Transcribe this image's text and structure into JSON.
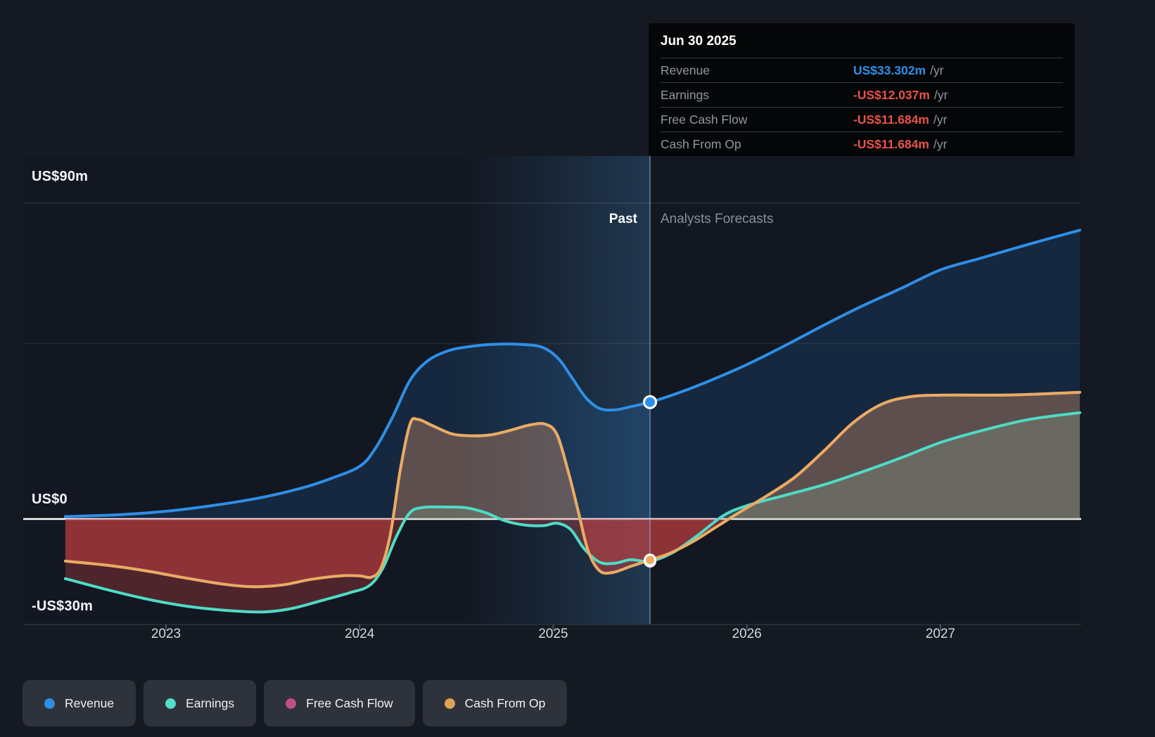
{
  "tooltip": {
    "date": "Jun 30 2025",
    "unit": "/yr",
    "rows": [
      {
        "label": "Revenue",
        "value": "US$33.302m",
        "color": "#2e8fe8"
      },
      {
        "label": "Earnings",
        "value": "-US$12.037m",
        "color": "#e85349"
      },
      {
        "label": "Free Cash Flow",
        "value": "-US$11.684m",
        "color": "#e85349"
      },
      {
        "label": "Cash From Op",
        "value": "-US$11.684m",
        "color": "#e85349"
      }
    ]
  },
  "legend": [
    {
      "label": "Revenue",
      "color": "#2d8ee3"
    },
    {
      "label": "Earnings",
      "color": "#52dec9"
    },
    {
      "label": "Free Cash Flow",
      "color": "#be4e87"
    },
    {
      "label": "Cash From Op",
      "color": "#dfa254"
    }
  ],
  "chart_data": {
    "type": "area",
    "title": "",
    "x_axis": {
      "labels": [
        "2023",
        "2024",
        "2025",
        "2026",
        "2027"
      ],
      "ticks": [
        2023,
        2024,
        2025,
        2026,
        2027
      ],
      "range": [
        2022.48,
        2027.72
      ]
    },
    "y_axis": {
      "unit": "US$ millions",
      "range": [
        -30,
        100
      ],
      "gridline_values": [
        90,
        50
      ],
      "labels": [
        {
          "text": "US$90m",
          "value": 90
        },
        {
          "text": "US$0",
          "value": 0
        },
        {
          "text": "-US$30m",
          "value": -30
        }
      ]
    },
    "divider": {
      "x": 2025.5,
      "past_label": "Past",
      "forecast_label": "Analysts Forecasts",
      "highlight_band": [
        2024.5,
        2025.5
      ]
    },
    "series": [
      {
        "name": "Revenue",
        "color": "#2e8fe8",
        "fill_positive": "rgba(46,143,232,0.15)",
        "fill_negative": "rgba(220,70,70,0.25)",
        "points": [
          [
            2022.48,
            0.7
          ],
          [
            2022.75,
            1.2
          ],
          [
            2023.0,
            2.2
          ],
          [
            2023.25,
            3.9
          ],
          [
            2023.5,
            6.2
          ],
          [
            2023.7,
            8.8
          ],
          [
            2023.85,
            11.5
          ],
          [
            2024.0,
            15
          ],
          [
            2024.08,
            20
          ],
          [
            2024.17,
            29
          ],
          [
            2024.26,
            39.5
          ],
          [
            2024.35,
            45
          ],
          [
            2024.45,
            47.8
          ],
          [
            2024.55,
            49
          ],
          [
            2024.7,
            49.8
          ],
          [
            2024.85,
            49.7
          ],
          [
            2024.95,
            48.8
          ],
          [
            2025.03,
            45.5
          ],
          [
            2025.1,
            40
          ],
          [
            2025.17,
            34.5
          ],
          [
            2025.24,
            31.5
          ],
          [
            2025.32,
            31.1
          ],
          [
            2025.4,
            32
          ],
          [
            2025.5,
            33.302
          ],
          [
            2025.65,
            36
          ],
          [
            2025.8,
            39.2
          ],
          [
            2026.0,
            44
          ],
          [
            2026.2,
            49.5
          ],
          [
            2026.4,
            55.3
          ],
          [
            2026.6,
            60.8
          ],
          [
            2026.8,
            65.8
          ],
          [
            2027.0,
            71
          ],
          [
            2027.2,
            74.2
          ],
          [
            2027.45,
            78.2
          ],
          [
            2027.72,
            82.3
          ]
        ]
      },
      {
        "name": "Free Cash Flow",
        "color": "#c9538f",
        "fill_positive": "rgba(201,83,143,0.10)",
        "fill_negative": "rgba(220,70,70,0.26)",
        "points": [
          [
            2022.48,
            -12
          ],
          [
            2022.7,
            -13.2
          ],
          [
            2022.9,
            -14.8
          ],
          [
            2023.1,
            -16.8
          ],
          [
            2023.3,
            -18.6
          ],
          [
            2023.45,
            -19.3
          ],
          [
            2023.6,
            -18.8
          ],
          [
            2023.75,
            -17.2
          ],
          [
            2023.9,
            -16.2
          ],
          [
            2024.0,
            -16.2
          ],
          [
            2024.06,
            -16.6
          ],
          [
            2024.11,
            -14
          ],
          [
            2024.16,
            -4
          ],
          [
            2024.21,
            14
          ],
          [
            2024.26,
            27
          ],
          [
            2024.3,
            28.4
          ],
          [
            2024.38,
            26.5
          ],
          [
            2024.48,
            24.2
          ],
          [
            2024.58,
            23.7
          ],
          [
            2024.68,
            24
          ],
          [
            2024.78,
            25.3
          ],
          [
            2024.88,
            26.8
          ],
          [
            2024.96,
            27
          ],
          [
            2025.02,
            24
          ],
          [
            2025.08,
            13
          ],
          [
            2025.13,
            2
          ],
          [
            2025.18,
            -9
          ],
          [
            2025.24,
            -14.8
          ],
          [
            2025.31,
            -15.2
          ],
          [
            2025.4,
            -13.5
          ],
          [
            2025.5,
            -11.684
          ],
          [
            2025.6,
            -9.8
          ],
          [
            2025.72,
            -6.5
          ],
          [
            2025.85,
            -2
          ],
          [
            2025.95,
            1.5
          ],
          [
            2026.1,
            6.5
          ],
          [
            2026.25,
            12
          ],
          [
            2026.4,
            19.5
          ],
          [
            2026.55,
            27.5
          ],
          [
            2026.7,
            32.8
          ],
          [
            2026.85,
            34.9
          ],
          [
            2027.0,
            35.3
          ],
          [
            2027.2,
            35.3
          ],
          [
            2027.4,
            35.4
          ],
          [
            2027.72,
            36.1
          ]
        ]
      },
      {
        "name": "Earnings",
        "color": "#4edcc7",
        "fill_positive": "rgba(120,215,195,0.22)",
        "fill_negative": "rgba(220,70,70,0.30)",
        "points": [
          [
            2022.48,
            -17
          ],
          [
            2022.7,
            -20.2
          ],
          [
            2022.9,
            -22.8
          ],
          [
            2023.1,
            -24.8
          ],
          [
            2023.3,
            -26
          ],
          [
            2023.5,
            -26.5
          ],
          [
            2023.65,
            -25.5
          ],
          [
            2023.8,
            -23.3
          ],
          [
            2023.95,
            -21
          ],
          [
            2024.05,
            -19
          ],
          [
            2024.12,
            -14
          ],
          [
            2024.19,
            -5
          ],
          [
            2024.26,
            1.8
          ],
          [
            2024.33,
            3.3
          ],
          [
            2024.45,
            3.4
          ],
          [
            2024.55,
            3.2
          ],
          [
            2024.65,
            1.8
          ],
          [
            2024.75,
            -0.5
          ],
          [
            2024.85,
            -1.7
          ],
          [
            2024.95,
            -1.9
          ],
          [
            2025.02,
            -1.2
          ],
          [
            2025.09,
            -3
          ],
          [
            2025.16,
            -8.5
          ],
          [
            2025.24,
            -12.3
          ],
          [
            2025.32,
            -12.6
          ],
          [
            2025.4,
            -11.6
          ],
          [
            2025.5,
            -12.037
          ],
          [
            2025.62,
            -9.5
          ],
          [
            2025.75,
            -4.5
          ],
          [
            2025.88,
            1
          ],
          [
            2026.0,
            3.8
          ],
          [
            2026.2,
            6.8
          ],
          [
            2026.4,
            9.8
          ],
          [
            2026.6,
            13.5
          ],
          [
            2026.8,
            17.5
          ],
          [
            2027.0,
            21.8
          ],
          [
            2027.2,
            25
          ],
          [
            2027.45,
            28.3
          ],
          [
            2027.72,
            30.3
          ]
        ]
      },
      {
        "name": "Cash From Op",
        "color": "#e9ac61",
        "fill_positive": "rgba(233,172,97,0.28)",
        "fill_negative": "rgba(220,70,70,0.26)",
        "points": [
          [
            2022.48,
            -12
          ],
          [
            2022.7,
            -13.2
          ],
          [
            2022.9,
            -14.8
          ],
          [
            2023.1,
            -16.8
          ],
          [
            2023.3,
            -18.6
          ],
          [
            2023.45,
            -19.3
          ],
          [
            2023.6,
            -18.8
          ],
          [
            2023.75,
            -17.2
          ],
          [
            2023.9,
            -16.2
          ],
          [
            2024.0,
            -16.2
          ],
          [
            2024.06,
            -16.6
          ],
          [
            2024.11,
            -14
          ],
          [
            2024.16,
            -4
          ],
          [
            2024.21,
            14
          ],
          [
            2024.26,
            27
          ],
          [
            2024.3,
            28.4
          ],
          [
            2024.38,
            26.5
          ],
          [
            2024.48,
            24.2
          ],
          [
            2024.58,
            23.7
          ],
          [
            2024.68,
            24
          ],
          [
            2024.78,
            25.3
          ],
          [
            2024.88,
            26.8
          ],
          [
            2024.96,
            27
          ],
          [
            2025.02,
            24
          ],
          [
            2025.08,
            13
          ],
          [
            2025.13,
            2
          ],
          [
            2025.18,
            -9
          ],
          [
            2025.24,
            -14.8
          ],
          [
            2025.31,
            -15.2
          ],
          [
            2025.4,
            -13.5
          ],
          [
            2025.5,
            -11.684
          ],
          [
            2025.6,
            -9.8
          ],
          [
            2025.72,
            -6.5
          ],
          [
            2025.85,
            -2
          ],
          [
            2025.95,
            1.5
          ],
          [
            2026.1,
            6.5
          ],
          [
            2026.25,
            12
          ],
          [
            2026.4,
            19.5
          ],
          [
            2026.55,
            27.5
          ],
          [
            2026.7,
            32.8
          ],
          [
            2026.85,
            34.9
          ],
          [
            2027.0,
            35.3
          ],
          [
            2027.2,
            35.3
          ],
          [
            2027.4,
            35.4
          ],
          [
            2027.72,
            36.1
          ]
        ]
      }
    ],
    "markers": [
      {
        "series": "Earnings",
        "x": 2025.5,
        "y": -12.037
      },
      {
        "series": "Cash From Op",
        "x": 2025.5,
        "y": -11.684
      },
      {
        "series": "Revenue",
        "x": 2025.5,
        "y": 33.302
      }
    ]
  }
}
